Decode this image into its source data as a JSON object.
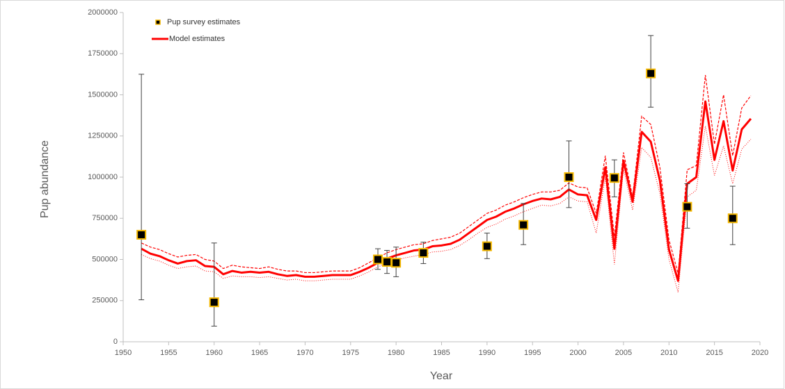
{
  "chart_data": {
    "type": "scatter",
    "x_label": "Year",
    "y_label": "Pup abundance",
    "xlim": [
      1950,
      2020
    ],
    "xticks": [
      1950,
      1955,
      1960,
      1965,
      1970,
      1975,
      1980,
      1985,
      1990,
      1995,
      2000,
      2005,
      2010,
      2015,
      2020
    ],
    "ylim": [
      0,
      2000000
    ],
    "yticks": [
      0,
      250000,
      500000,
      750000,
      1000000,
      1250000,
      1500000,
      1750000,
      2000000
    ],
    "grid": false,
    "legend": "top-left",
    "series": [
      {
        "name": "Pup survey estimates",
        "type": "scatter",
        "color": "#000000",
        "edge_color": "#f5b800",
        "x": [
          1952,
          1960,
          1978,
          1979,
          1980,
          1983,
          1990,
          1994,
          1999,
          2004,
          2008,
          2012,
          2017
        ],
        "values": [
          650000,
          240000,
          500000,
          485000,
          480000,
          540000,
          580000,
          710000,
          1000000,
          995000,
          1630000,
          820000,
          750000
        ],
        "lower": [
          255000,
          95000,
          440000,
          415000,
          395000,
          475000,
          505000,
          590000,
          815000,
          880000,
          1425000,
          690000,
          590000
        ],
        "upper": [
          1625000,
          600000,
          565000,
          555000,
          575000,
          605000,
          660000,
          840000,
          1220000,
          1105000,
          1860000,
          960000,
          945000
        ]
      },
      {
        "name": "Model estimates",
        "type": "line",
        "color": "#ff0000",
        "x": [
          1952,
          1953,
          1954,
          1955,
          1956,
          1957,
          1958,
          1959,
          1960,
          1961,
          1962,
          1963,
          1964,
          1965,
          1966,
          1967,
          1968,
          1969,
          1970,
          1971,
          1972,
          1973,
          1974,
          1975,
          1976,
          1977,
          1978,
          1979,
          1980,
          1981,
          1982,
          1983,
          1984,
          1985,
          1986,
          1987,
          1988,
          1989,
          1990,
          1991,
          1992,
          1993,
          1994,
          1995,
          1996,
          1997,
          1998,
          1999,
          2000,
          2001,
          2002,
          2003,
          2004,
          2005,
          2006,
          2007,
          2008,
          2009,
          2010,
          2011,
          2012,
          2013,
          2014,
          2015,
          2016,
          2017,
          2018,
          2019
        ],
        "values": [
          565000,
          535000,
          520000,
          495000,
          475000,
          490000,
          495000,
          460000,
          455000,
          410000,
          430000,
          420000,
          425000,
          420000,
          425000,
          410000,
          400000,
          405000,
          395000,
          395000,
          400000,
          405000,
          405000,
          405000,
          425000,
          450000,
          480000,
          505000,
          525000,
          540000,
          555000,
          560000,
          580000,
          585000,
          595000,
          620000,
          660000,
          700000,
          740000,
          760000,
          790000,
          810000,
          835000,
          855000,
          870000,
          865000,
          880000,
          925000,
          895000,
          890000,
          740000,
          1060000,
          565000,
          1100000,
          850000,
          1275000,
          1215000,
          980000,
          560000,
          370000,
          960000,
          1000000,
          1460000,
          1105000,
          1340000,
          1040000,
          1290000,
          1355000
        ],
        "upper": [
          600000,
          575000,
          560000,
          535000,
          515000,
          525000,
          530000,
          500000,
          490000,
          445000,
          465000,
          455000,
          450000,
          445000,
          455000,
          440000,
          430000,
          430000,
          420000,
          420000,
          425000,
          430000,
          430000,
          430000,
          450000,
          480000,
          510000,
          540000,
          560000,
          575000,
          590000,
          595000,
          615000,
          625000,
          635000,
          660000,
          700000,
          740000,
          780000,
          800000,
          830000,
          850000,
          875000,
          895000,
          910000,
          910000,
          920000,
          965000,
          940000,
          935000,
          780000,
          1130000,
          640000,
          1150000,
          880000,
          1370000,
          1320000,
          1060000,
          620000,
          415000,
          1045000,
          1070000,
          1620000,
          1200000,
          1500000,
          1130000,
          1420000,
          1495000
        ],
        "lower": [
          530000,
          505000,
          490000,
          465000,
          445000,
          455000,
          460000,
          430000,
          425000,
          385000,
          400000,
          395000,
          395000,
          390000,
          395000,
          385000,
          375000,
          380000,
          370000,
          370000,
          375000,
          380000,
          380000,
          380000,
          400000,
          425000,
          455000,
          475000,
          495000,
          510000,
          520000,
          530000,
          545000,
          550000,
          560000,
          585000,
          620000,
          660000,
          695000,
          715000,
          745000,
          765000,
          790000,
          810000,
          830000,
          825000,
          840000,
          880000,
          855000,
          850000,
          660000,
          1000000,
          470000,
          1050000,
          800000,
          1180000,
          1120000,
          900000,
          500000,
          300000,
          880000,
          920000,
          1310000,
          1010000,
          1190000,
          960000,
          1170000,
          1230000
        ]
      }
    ]
  }
}
